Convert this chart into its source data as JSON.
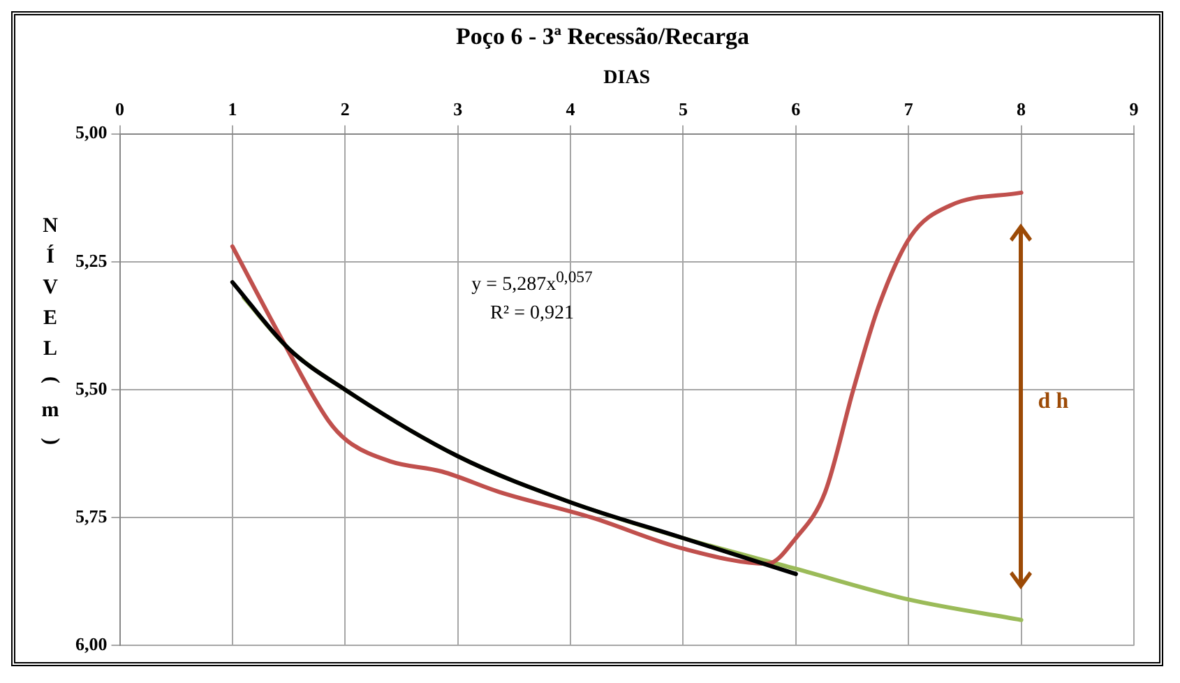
{
  "chart_data": {
    "type": "line",
    "title": "Poço 6 - 3ª Recessão/Recarga",
    "xlabel": "DIAS",
    "ylabel": "NÍVEL (m)",
    "xlim": [
      0,
      9
    ],
    "xticks": [
      0,
      1,
      2,
      3,
      4,
      5,
      6,
      7,
      8,
      9
    ],
    "ylim": [
      6,
      5
    ],
    "yticks": [
      {
        "value": 5,
        "label": "5,00"
      },
      {
        "value": 5.25,
        "label": "5,25"
      },
      {
        "value": 5.5,
        "label": "5,50"
      },
      {
        "value": 5.75,
        "label": "5,75"
      },
      {
        "value": 6,
        "label": "6,00"
      }
    ],
    "grid": true,
    "legend": false,
    "marker": "none",
    "line_style": "solid",
    "series": [
      {
        "color": "#000000",
        "x": [
          1,
          1.5,
          2,
          3,
          4,
          5,
          6
        ],
        "values": [
          5.29,
          5.42,
          5.5,
          5.63,
          5.72,
          5.79,
          5.86
        ]
      },
      {
        "color": "#c0504d",
        "x": [
          1,
          1.46,
          1.85,
          2.02,
          2.4,
          2.86,
          3.37,
          4.19,
          4.99,
          5.75,
          6,
          6.26,
          6.51,
          6.73,
          7.02,
          7.37,
          8
        ],
        "values": [
          5.22,
          5.41,
          5.56,
          5.6,
          5.64,
          5.66,
          5.7,
          5.75,
          5.81,
          5.84,
          5.79,
          5.7,
          5.5,
          5.34,
          5.2,
          5.14,
          5.115
        ]
      },
      {
        "color": "#9bbb59",
        "x": [
          1.1,
          1.5,
          2,
          3,
          4,
          5,
          6,
          7,
          8
        ],
        "values": [
          5.32,
          5.42,
          5.5,
          5.63,
          5.72,
          5.79,
          5.85,
          5.91,
          5.95
        ]
      }
    ],
    "annotations": [
      "y = 5,287x$^{0,057}$",
      "R² = 0,921",
      "d h"
    ]
  }
}
